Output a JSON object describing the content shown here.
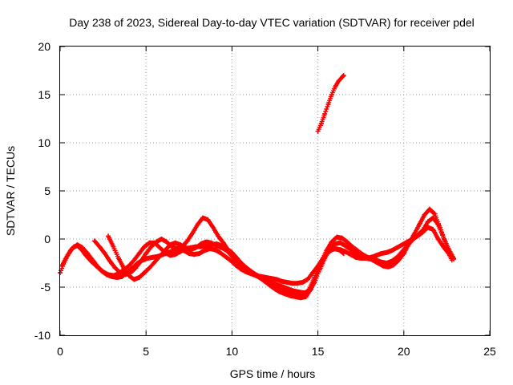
{
  "chart_data": {
    "type": "scatter",
    "title": "Day 238 of 2023, Sidereal Day-to-day VTEC variation (SDTVAR) for receiver pdel",
    "xlabel": "GPS time / hours",
    "ylabel": "SDTVAR / TECUs",
    "xlim": [
      0,
      25
    ],
    "ylim": [
      -10,
      20
    ],
    "xticks": [
      "0",
      "5",
      "10",
      "15",
      "20",
      "25"
    ],
    "yticks": [
      "-10",
      "-5",
      "0",
      "5",
      "10",
      "15",
      "20"
    ],
    "grid": true,
    "marker": "+",
    "color": "#ff0000",
    "series": [
      {
        "name": "track-1",
        "x": [
          0.0,
          0.2,
          0.4,
          0.6,
          0.8,
          1.0,
          1.2,
          1.5,
          1.8,
          2.1,
          2.4,
          2.7,
          3.0,
          3.3,
          3.6,
          3.9,
          4.2,
          4.5,
          4.8,
          5.1,
          5.4,
          5.7,
          6.0,
          6.3,
          6.6,
          6.9,
          7.2,
          7.5,
          7.8,
          8.1,
          8.4,
          8.7,
          9.0,
          9.3,
          9.6,
          9.9,
          10.2,
          10.5,
          10.8,
          11.1,
          11.4,
          11.7,
          12.0,
          12.3,
          12.6,
          12.9,
          13.2,
          13.5,
          13.8,
          14.1,
          14.4,
          14.7,
          15.0,
          15.3,
          15.6,
          15.9,
          16.2,
          16.5
        ],
        "y": [
          -3.5,
          -2.6,
          -1.8,
          -1.2,
          -0.8,
          -0.7,
          -1.0,
          -1.7,
          -2.3,
          -2.8,
          -3.3,
          -3.7,
          -3.9,
          -4.0,
          -3.9,
          -3.5,
          -3.0,
          -2.5,
          -2.2,
          -2.0,
          -1.9,
          -1.8,
          -1.6,
          -1.4,
          -1.2,
          -1.1,
          -1.2,
          -1.5,
          -1.6,
          -1.5,
          -1.2,
          -1.0,
          -1.1,
          -1.4,
          -1.8,
          -2.2,
          -2.7,
          -3.1,
          -3.4,
          -3.6,
          -3.8,
          -3.9,
          -4.0,
          -4.1,
          -4.2,
          -4.4,
          -4.5,
          -4.6,
          -4.6,
          -4.5,
          -4.2,
          -3.5,
          -2.8,
          -2.0,
          -1.4,
          -1.0,
          -1.1,
          -1.5
        ]
      },
      {
        "name": "track-2",
        "x": [
          0.1,
          0.4,
          0.7,
          1.0,
          1.3,
          1.6,
          1.9,
          2.2,
          2.5,
          2.8,
          3.1,
          3.4,
          3.7,
          4.0,
          4.3,
          4.6,
          4.9,
          5.2,
          5.5,
          5.8,
          6.1,
          6.4,
          6.7,
          7.0,
          7.3,
          7.6,
          7.9,
          8.2,
          8.5,
          8.8,
          9.1,
          9.4,
          9.7,
          10.0,
          10.3,
          10.6,
          10.9,
          11.2,
          11.5,
          11.8,
          12.1,
          12.4,
          12.7,
          13.0,
          13.3,
          13.6,
          13.9,
          14.2,
          14.5,
          14.8,
          15.1,
          15.4,
          15.7,
          16.0,
          16.3,
          16.6,
          16.9,
          17.2,
          17.5,
          17.8,
          18.1,
          18.4,
          18.7,
          19.0,
          19.3,
          19.6,
          19.9,
          20.2,
          20.5,
          20.8,
          21.1,
          21.4,
          21.7,
          22.0,
          22.3,
          22.6,
          22.8
        ],
        "y": [
          -2.8,
          -1.8,
          -1.0,
          -0.6,
          -0.9,
          -1.5,
          -2.2,
          -2.9,
          -3.4,
          -3.7,
          -3.8,
          -3.6,
          -3.2,
          -2.8,
          -2.2,
          -1.5,
          -0.8,
          -0.4,
          -0.4,
          -0.9,
          -1.4,
          -1.7,
          -1.6,
          -1.3,
          -1.0,
          -0.9,
          -0.8,
          -0.8,
          -0.7,
          -0.6,
          -0.5,
          -0.7,
          -1.0,
          -1.4,
          -2.0,
          -2.6,
          -3.1,
          -3.5,
          -3.8,
          -4.2,
          -4.6,
          -4.9,
          -5.1,
          -5.3,
          -5.4,
          -5.6,
          -5.8,
          -5.8,
          -5.2,
          -4.0,
          -2.8,
          -1.8,
          -1.2,
          -1.0,
          -1.1,
          -1.3,
          -1.6,
          -1.9,
          -2.0,
          -2.0,
          -1.9,
          -1.7,
          -1.5,
          -1.4,
          -1.2,
          -0.9,
          -0.6,
          -0.3,
          0.0,
          0.3,
          0.7,
          1.2,
          1.0,
          0.0,
          -0.8,
          -1.5,
          -2.2
        ]
      },
      {
        "name": "track-3",
        "x": [
          2.0,
          2.3,
          2.6,
          2.9,
          3.2,
          3.5,
          3.8,
          4.1,
          4.4,
          4.7,
          5.0,
          5.3,
          5.6,
          5.9,
          6.2,
          6.5,
          6.8,
          7.1,
          7.4,
          7.7,
          8.0,
          8.3,
          8.6,
          8.9,
          9.2,
          9.5,
          9.8,
          10.1,
          10.4,
          10.7,
          11.0,
          11.3,
          11.6,
          11.9,
          12.2,
          12.5,
          12.8,
          13.1,
          13.4,
          13.7,
          14.0,
          14.3,
          14.6,
          14.9,
          15.2,
          15.5,
          15.8,
          16.1,
          16.4,
          16.7,
          17.0,
          17.3,
          17.6,
          17.9,
          18.2,
          18.5,
          18.8,
          19.1,
          19.4,
          19.7,
          20.0,
          20.3,
          20.6,
          20.9,
          21.2,
          21.5,
          21.8,
          22.1,
          22.4,
          22.7,
          22.9
        ],
        "y": [
          -0.2,
          -0.8,
          -1.5,
          -2.3,
          -3.0,
          -3.5,
          -3.7,
          -3.5,
          -3.0,
          -2.3,
          -1.5,
          -0.8,
          -0.3,
          0.0,
          -0.3,
          -0.8,
          -1.0,
          -0.8,
          -0.2,
          0.6,
          1.5,
          2.2,
          2.0,
          1.2,
          0.3,
          -0.4,
          -1.2,
          -1.8,
          -2.3,
          -2.8,
          -3.2,
          -3.6,
          -4.0,
          -4.4,
          -4.8,
          -5.2,
          -5.5,
          -5.7,
          -5.9,
          -6.0,
          -6.1,
          -6.0,
          -5.2,
          -3.8,
          -2.4,
          -1.2,
          -0.3,
          0.2,
          0.1,
          -0.3,
          -0.8,
          -1.2,
          -1.6,
          -1.9,
          -2.2,
          -2.5,
          -2.8,
          -2.9,
          -2.7,
          -2.2,
          -1.5,
          -0.5,
          0.5,
          1.5,
          2.5,
          3.1,
          2.6,
          1.2,
          -0.3,
          -1.5,
          -2.1
        ]
      },
      {
        "name": "track-4",
        "x": [
          2.8,
          3.1,
          3.4,
          3.7,
          4.0,
          4.3,
          4.6,
          4.9,
          5.2,
          5.5,
          5.8,
          6.1,
          6.4,
          6.7,
          7.0,
          7.3,
          7.6,
          7.9,
          8.2,
          8.5,
          8.8,
          9.1,
          9.4,
          9.7,
          10.0,
          10.3,
          10.6,
          10.9,
          11.2,
          11.5,
          11.8,
          12.1,
          12.4,
          12.7,
          13.0,
          13.3,
          13.6,
          13.9,
          14.2,
          14.5,
          14.8,
          15.1,
          15.4,
          15.7,
          16.0,
          16.3,
          16.6,
          16.9,
          17.2,
          17.5,
          17.8,
          18.1,
          18.4,
          18.7,
          19.0,
          19.3,
          19.6,
          19.9,
          20.2,
          20.5,
          20.8,
          21.1,
          21.4,
          21.7,
          22.0,
          22.3,
          22.6,
          22.9
        ],
        "y": [
          0.3,
          -0.8,
          -2.0,
          -3.0,
          -3.8,
          -4.2,
          -4.0,
          -3.5,
          -3.0,
          -2.4,
          -1.8,
          -1.2,
          -0.6,
          -0.4,
          -0.6,
          -0.9,
          -1.1,
          -0.9,
          -0.5,
          -0.3,
          -0.4,
          -0.7,
          -0.9,
          -1.2,
          -1.8,
          -2.4,
          -2.9,
          -3.3,
          -3.6,
          -3.9,
          -4.2,
          -4.4,
          -4.6,
          -4.8,
          -5.0,
          -5.2,
          -5.4,
          -5.5,
          -5.6,
          -5.4,
          -4.5,
          -3.2,
          -2.0,
          -1.0,
          -0.5,
          -0.4,
          -0.7,
          -1.1,
          -1.5,
          -1.8,
          -2.0,
          -2.1,
          -2.2,
          -2.4,
          -2.5,
          -2.3,
          -1.9,
          -1.3,
          -0.7,
          -0.1,
          0.4,
          0.9,
          1.8,
          2.2,
          1.5,
          0.2,
          -1.0,
          -2.0
        ]
      },
      {
        "name": "track-5",
        "x": [
          15.0,
          15.2,
          15.4,
          15.6,
          15.8,
          16.0,
          16.2,
          16.4,
          16.5
        ],
        "y": [
          11.2,
          12.0,
          13.0,
          14.0,
          15.0,
          15.8,
          16.4,
          16.8,
          17.0
        ]
      }
    ]
  }
}
